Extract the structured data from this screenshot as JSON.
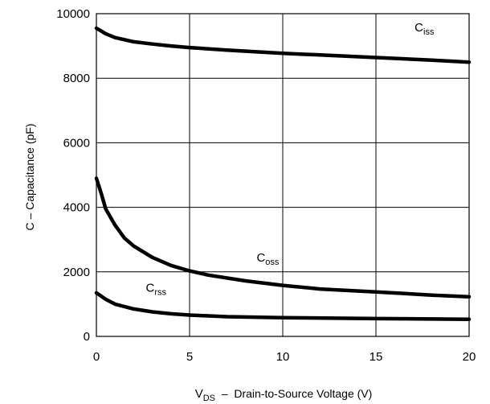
{
  "chart_data": {
    "type": "line",
    "xlabel": {
      "prefix": "V",
      "sub": "DS",
      "rest": "  –  Drain-to-Source Voltage (V)"
    },
    "ylabel": "C  –  Capacitance (pF)",
    "xlim": [
      0,
      20
    ],
    "ylim": [
      0,
      10000
    ],
    "x_ticks": [
      0,
      5,
      10,
      15,
      20
    ],
    "y_ticks": [
      0,
      2000,
      4000,
      6000,
      8000,
      10000
    ],
    "x_tick_labels": [
      "0",
      "5",
      "10",
      "15",
      "20"
    ],
    "y_tick_labels": [
      "0",
      "2000",
      "4000",
      "6000",
      "8000",
      "10000"
    ],
    "grid": true,
    "colors": {
      "line": "#000000",
      "grid": "#000000",
      "background": "#ffffff"
    },
    "series": [
      {
        "label_main": "C",
        "label_sub": "iss",
        "x": [
          0,
          0.5,
          1,
          2,
          3,
          4,
          5,
          7,
          10,
          12,
          15,
          18,
          20
        ],
        "y": [
          9550,
          9380,
          9260,
          9130,
          9060,
          9000,
          8950,
          8870,
          8770,
          8720,
          8640,
          8560,
          8500
        ]
      },
      {
        "label_main": "C",
        "label_sub": "oss",
        "x": [
          0,
          0.25,
          0.5,
          1,
          1.5,
          2,
          3,
          4,
          5,
          6,
          8,
          10,
          12,
          15,
          18,
          20
        ],
        "y": [
          4900,
          4450,
          3950,
          3450,
          3050,
          2800,
          2450,
          2200,
          2030,
          1900,
          1720,
          1580,
          1470,
          1380,
          1280,
          1230
        ]
      },
      {
        "label_main": "C",
        "label_sub": "rss",
        "x": [
          0,
          0.5,
          1,
          2,
          3,
          4,
          5,
          7,
          10,
          15,
          20
        ],
        "y": [
          1350,
          1150,
          1000,
          850,
          760,
          700,
          660,
          610,
          580,
          550,
          530
        ]
      }
    ]
  }
}
